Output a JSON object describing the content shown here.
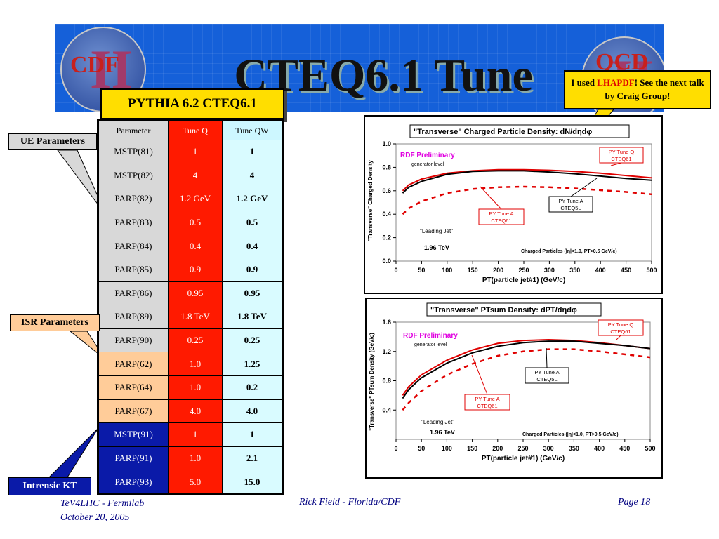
{
  "slide": {
    "title": "CTEQ6.1 Tune",
    "logo_left": {
      "roman": "II",
      "text": "CDF"
    },
    "logo_right": {
      "roman": "II",
      "text": "QCD"
    },
    "pythia_label": "PYTHIA 6.2 CTEQ6.1",
    "note": {
      "before": "I used ",
      "highlight": "LHAPDF",
      "after": "! See the next talk by Craig Group!"
    },
    "callouts": {
      "ue": "UE Parameters",
      "isr": "ISR Parameters",
      "kt": "Intrensic KT"
    },
    "footer": {
      "left_line1": "TeV4LHC - Fermilab",
      "left_line2": "October 20, 2005",
      "center": "Rick Field - Florida/CDF",
      "right": "Page 18"
    },
    "colors": {
      "banner": "#1560d9",
      "tune_q": "#ff1a00",
      "tune_qw": "#d9fbff",
      "ue": "#d8d8d8",
      "isr": "#ffcc99",
      "kt": "#0a1aa8",
      "callout_yellow": "#ffde00"
    }
  },
  "table": {
    "headers": [
      "Parameter",
      "Tune Q",
      "Tune QW"
    ],
    "rows": [
      {
        "param": "MSTP(81)",
        "q": "1",
        "qw": "1",
        "group": "ue"
      },
      {
        "param": "MSTP(82)",
        "q": "4",
        "qw": "4",
        "group": "ue"
      },
      {
        "param": "PARP(82)",
        "q": "1.2 GeV",
        "qw": "1.2 GeV",
        "group": "ue"
      },
      {
        "param": "PARP(83)",
        "q": "0.5",
        "qw": "0.5",
        "group": "ue"
      },
      {
        "param": "PARP(84)",
        "q": "0.4",
        "qw": "0.4",
        "group": "ue"
      },
      {
        "param": "PARP(85)",
        "q": "0.9",
        "qw": "0.9",
        "group": "ue"
      },
      {
        "param": "PARP(86)",
        "q": "0.95",
        "qw": "0.95",
        "group": "ue"
      },
      {
        "param": "PARP(89)",
        "q": "1.8 TeV",
        "qw": "1.8 TeV",
        "group": "ue"
      },
      {
        "param": "PARP(90)",
        "q": "0.25",
        "qw": "0.25",
        "group": "ue"
      },
      {
        "param": "PARP(62)",
        "q": "1.0",
        "qw": "1.25",
        "group": "isr"
      },
      {
        "param": "PARP(64)",
        "q": "1.0",
        "qw": "0.2",
        "group": "isr"
      },
      {
        "param": "PARP(67)",
        "q": "4.0",
        "qw": "4.0",
        "group": "isr"
      },
      {
        "param": "MSTP(91)",
        "q": "1",
        "qw": "1",
        "group": "kt"
      },
      {
        "param": "PARP(91)",
        "q": "1.0",
        "qw": "2.1",
        "group": "kt"
      },
      {
        "param": "PARP(93)",
        "q": "5.0",
        "qw": "15.0",
        "group": "kt"
      }
    ]
  },
  "chart_data": [
    {
      "type": "line",
      "title": "\"Transverse\" Charged Particle Density: dN/dηdφ",
      "xlabel": "PT(particle jet#1)  (GeV/c)",
      "ylabel": "\"Transverse\" Charged Density",
      "xlim": [
        0,
        500
      ],
      "ylim": [
        0,
        1.0
      ],
      "xticks": [
        "0",
        "50",
        "100",
        "150",
        "200",
        "250",
        "300",
        "350",
        "400",
        "450",
        "500"
      ],
      "yticks": [
        "0.0",
        "0.2",
        "0.4",
        "0.6",
        "0.8",
        "1.0"
      ],
      "annotations": {
        "rdf": "RDF Preliminary",
        "gen": "generator level",
        "leading": "\"Leading Jet\"",
        "energy": "1.96 TeV",
        "cuts": "Charged Particles (|η|<1.0, PT>0.5 GeV/c)"
      },
      "series": [
        {
          "name": "PY Tune Q CTEQ61",
          "color": "#e00000",
          "dash": false,
          "x": [
            13,
            25,
            50,
            100,
            150,
            200,
            250,
            300,
            350,
            400,
            450,
            500
          ],
          "y": [
            0.6,
            0.65,
            0.7,
            0.75,
            0.77,
            0.78,
            0.78,
            0.775,
            0.765,
            0.75,
            0.73,
            0.71
          ]
        },
        {
          "name": "PY Tune A CTEQ5L",
          "color": "#000000",
          "dash": false,
          "x": [
            13,
            25,
            50,
            100,
            150,
            200,
            250,
            300,
            350,
            400,
            450,
            500
          ],
          "y": [
            0.58,
            0.63,
            0.68,
            0.74,
            0.765,
            0.77,
            0.77,
            0.76,
            0.745,
            0.725,
            0.705,
            0.69
          ]
        },
        {
          "name": "PY Tune A CTEQ61",
          "color": "#e00000",
          "dash": true,
          "x": [
            13,
            25,
            50,
            100,
            150,
            200,
            250,
            300,
            350,
            400,
            450,
            500
          ],
          "y": [
            0.4,
            0.45,
            0.51,
            0.58,
            0.615,
            0.63,
            0.635,
            0.63,
            0.62,
            0.605,
            0.59,
            0.57
          ]
        }
      ],
      "labels": [
        {
          "text": [
            "PY Tune Q",
            "CTEQ61"
          ],
          "color": "#e00000"
        },
        {
          "text": [
            "PY Tune A",
            "CTEQ5L"
          ],
          "color": "#000000"
        },
        {
          "text": [
            "PY Tune A",
            "CTEQ61"
          ],
          "color": "#e00000"
        }
      ]
    },
    {
      "type": "line",
      "title": "\"Transverse\" PTsum Density: dPT/dηdφ",
      "xlabel": "PT(particle jet#1)  (GeV/c)",
      "ylabel": "\"Transverse\" PTsum Density (GeV/c)",
      "xlim": [
        0,
        500
      ],
      "ylim": [
        0,
        1.6
      ],
      "xticks": [
        "0",
        "50",
        "100",
        "150",
        "200",
        "250",
        "300",
        "350",
        "400",
        "450",
        "500"
      ],
      "yticks": [
        "0.4",
        "0.8",
        "1.2",
        "1.6"
      ],
      "annotations": {
        "rdf": "RDF Preliminary",
        "gen": "generator level",
        "leading": "\"Leading Jet\"",
        "energy": "1.96 TeV",
        "cuts": "Charged Particles (|η|<1.0, PT>0.5 GeV/c)"
      },
      "series": [
        {
          "name": "PY Tune Q CTEQ61",
          "color": "#e00000",
          "dash": false,
          "x": [
            13,
            25,
            50,
            100,
            150,
            200,
            250,
            300,
            350,
            400,
            450,
            500
          ],
          "y": [
            0.6,
            0.72,
            0.88,
            1.08,
            1.22,
            1.31,
            1.35,
            1.36,
            1.35,
            1.32,
            1.28,
            1.24
          ]
        },
        {
          "name": "PY Tune A CTEQ5L",
          "color": "#000000",
          "dash": false,
          "x": [
            13,
            25,
            50,
            100,
            150,
            200,
            250,
            300,
            350,
            400,
            450,
            500
          ],
          "y": [
            0.56,
            0.68,
            0.84,
            1.04,
            1.18,
            1.27,
            1.32,
            1.34,
            1.34,
            1.31,
            1.28,
            1.24
          ]
        },
        {
          "name": "PY Tune A CTEQ61",
          "color": "#e00000",
          "dash": true,
          "x": [
            13,
            25,
            50,
            100,
            150,
            200,
            250,
            300,
            350,
            400,
            450,
            500
          ],
          "y": [
            0.4,
            0.5,
            0.66,
            0.88,
            1.03,
            1.14,
            1.2,
            1.23,
            1.23,
            1.2,
            1.16,
            1.12
          ]
        }
      ],
      "labels": [
        {
          "text": [
            "PY Tune Q",
            "CTEQ61"
          ],
          "color": "#e00000"
        },
        {
          "text": [
            "PY Tune A",
            "CTEQ5L"
          ],
          "color": "#000000"
        },
        {
          "text": [
            "PY Tune A",
            "CTEQ61"
          ],
          "color": "#e00000"
        }
      ]
    }
  ]
}
